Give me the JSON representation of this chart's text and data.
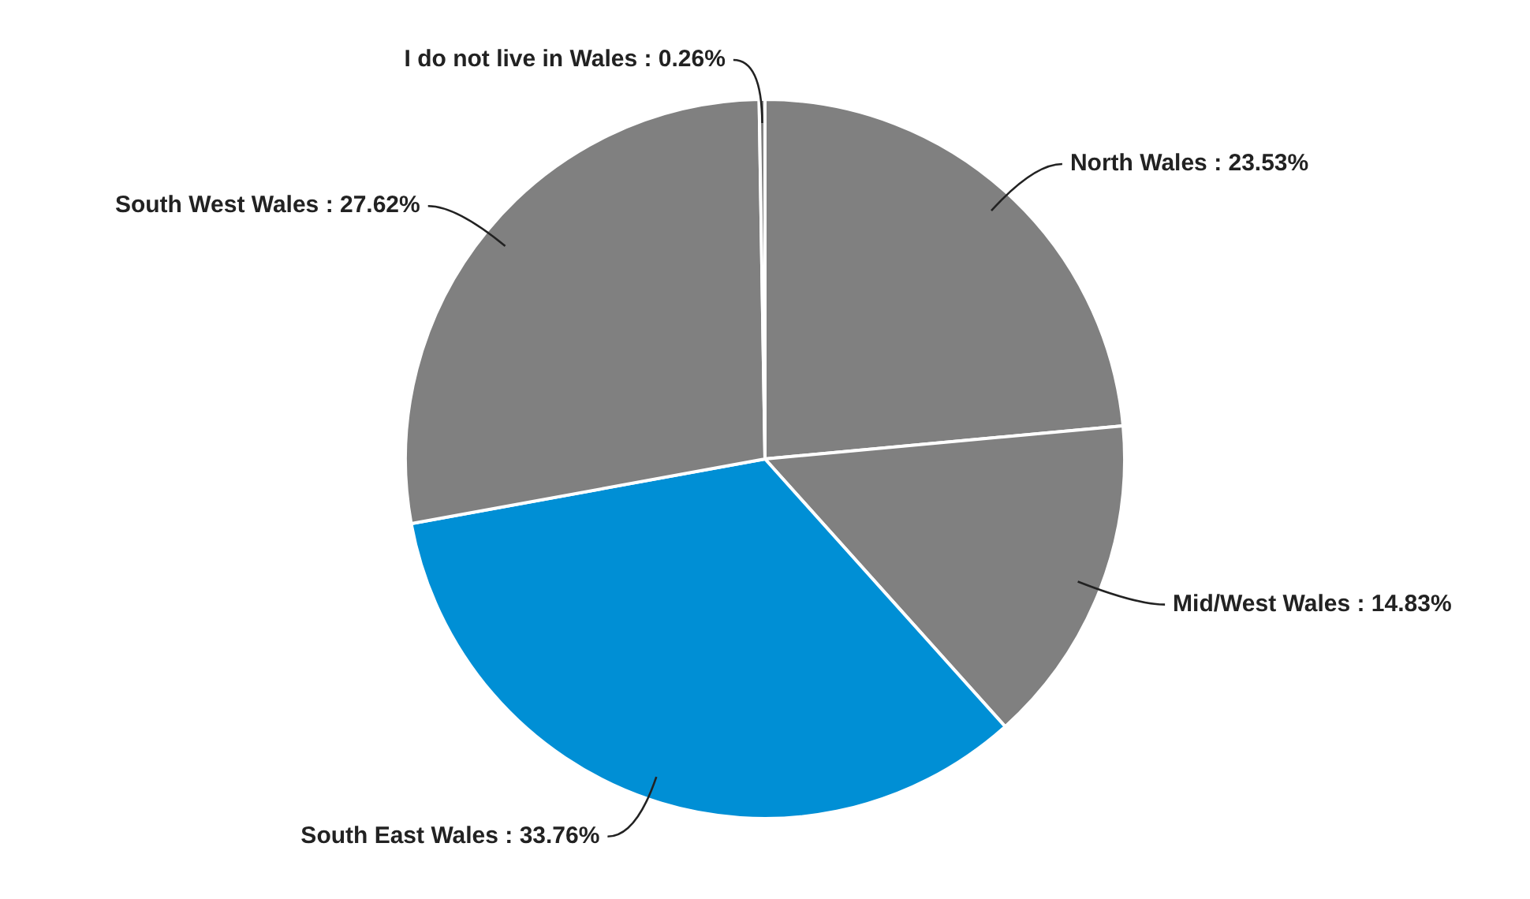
{
  "chart_data": {
    "type": "pie",
    "categories": [
      "North Wales",
      "Mid/West Wales",
      "South East Wales",
      "South West Wales",
      "I do not live in Wales"
    ],
    "values": [
      23.53,
      14.83,
      33.76,
      27.62,
      0.26
    ],
    "value_labels": [
      "23.53%",
      "14.83%",
      "33.76%",
      "27.62%",
      "0.26%"
    ],
    "colors": [
      "#808080",
      "#808080",
      "#008fd5",
      "#808080",
      "#808080"
    ],
    "legend": false
  }
}
